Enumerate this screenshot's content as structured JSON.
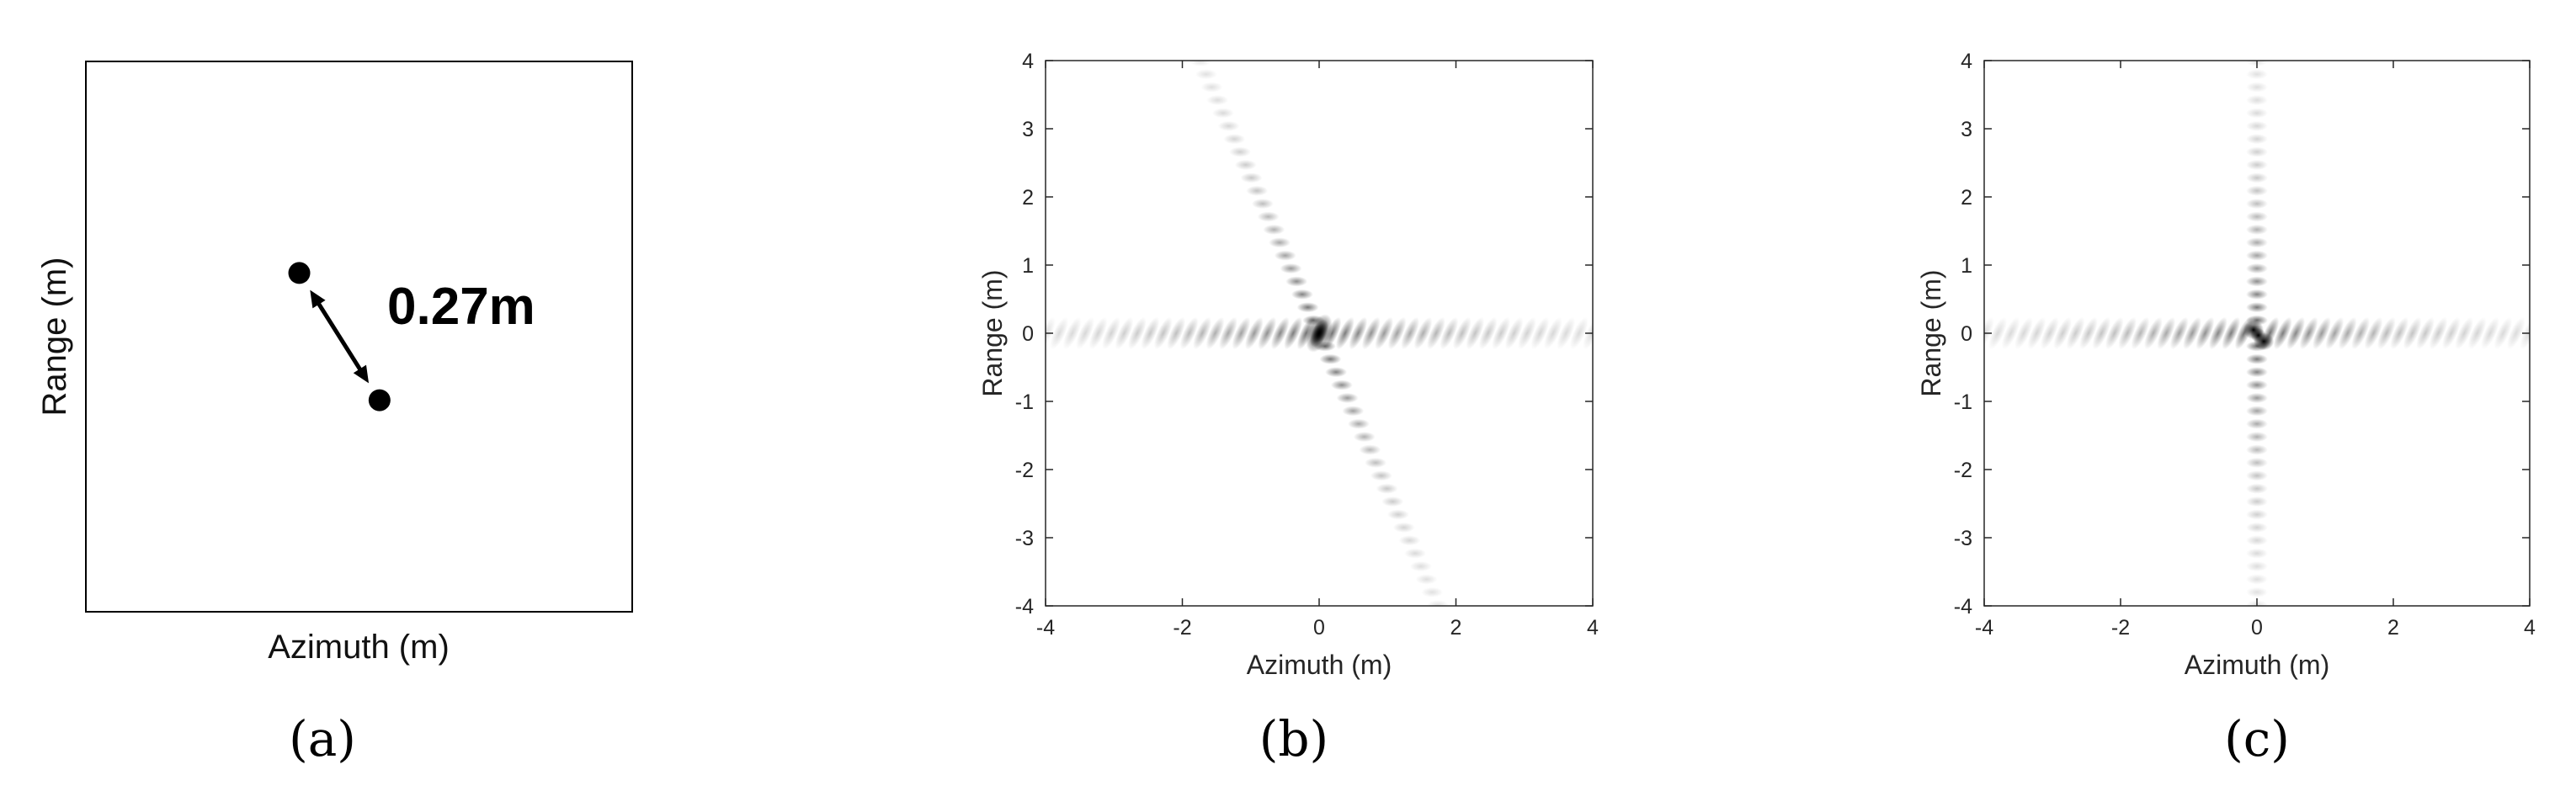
{
  "colors": {
    "ink": "#000000",
    "axis": "#262626",
    "background": "#ffffff"
  },
  "chart_data": [
    {
      "type": "diagram",
      "caption": "(a)",
      "xlabel": "Azimuth (m)",
      "ylabel": "Range (m)",
      "annotation": "0.27m",
      "ticks_shown": false,
      "points": [
        {
          "x": -0.35,
          "y": 0.37
        },
        {
          "x": 0.12,
          "y": -0.37
        }
      ]
    },
    {
      "type": "heatmap",
      "caption": "(b)",
      "xlabel": "Azimuth (m)",
      "ylabel": "Range (m)",
      "xlim": [
        -4,
        4
      ],
      "ylim": [
        -4,
        4
      ],
      "xticks": [
        "-4",
        "-2",
        "0",
        "2",
        "4"
      ],
      "yticks": [
        "4",
        "3",
        "2",
        "1",
        "0",
        "-1",
        "-2",
        "-3",
        "-4"
      ],
      "colormap": "gray-inverted",
      "peak": {
        "x": 0,
        "y": 0
      },
      "range_sidelobe_slope": -2.3
    },
    {
      "type": "heatmap",
      "caption": "(c)",
      "xlabel": "Azimuth (m)",
      "ylabel": "Range (m)",
      "xlim": [
        -4,
        4
      ],
      "ylim": [
        -4,
        4
      ],
      "xticks": [
        "-4",
        "-2",
        "0",
        "2",
        "4"
      ],
      "yticks": [
        "4",
        "3",
        "2",
        "1",
        "0",
        "-1",
        "-2",
        "-3",
        "-4"
      ],
      "colormap": "gray-inverted",
      "peak": {
        "x": 0,
        "y": 0
      },
      "range_sidelobe_slope": "vertical"
    }
  ]
}
